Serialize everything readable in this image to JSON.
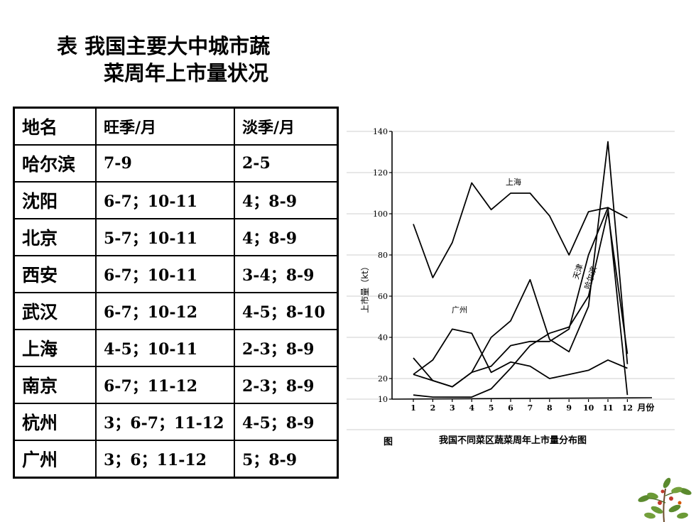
{
  "title": {
    "line1": "表  我国主要大中城市蔬",
    "line2": "菜周年上市量状况"
  },
  "table": {
    "headers": [
      "地名",
      "旺季/月",
      "淡季/月"
    ],
    "rows": [
      [
        "哈尔滨",
        "7-9",
        "2-5"
      ],
      [
        "沈阳",
        "6-7；10-11",
        "4；8-9"
      ],
      [
        "北京",
        "5-7；10-11",
        "4；8-9"
      ],
      [
        "西安",
        "6-7；10-11",
        "3-4；8-9"
      ],
      [
        "武汉",
        "6-7；10-12",
        "4-5；8-10"
      ],
      [
        "上海",
        "4-5；10-11",
        "2-3；8-9"
      ],
      [
        "南京",
        "6-7；11-12",
        "2-3；8-9"
      ],
      [
        "杭州",
        "3；6-7；11-12",
        "4-5；8-9"
      ],
      [
        "广州",
        "3；6；11-12",
        "5；8-9"
      ]
    ]
  },
  "chart_data": {
    "type": "line",
    "title": "我国不同菜区蔬菜周年上市量分布图",
    "caption_prefix": "图",
    "xlabel": "月份",
    "ylabel": "上市量（kt）",
    "x": [
      1,
      2,
      3,
      4,
      5,
      6,
      7,
      8,
      9,
      10,
      11,
      12
    ],
    "x_tick_labels": [
      "1",
      "2",
      "3",
      "4",
      "5",
      "6",
      "7",
      "8",
      "9",
      "10",
      "11",
      "12"
    ],
    "y_ticks": [
      10,
      20,
      40,
      60,
      80,
      100,
      120,
      140
    ],
    "ylim": [
      10,
      140
    ],
    "series": [
      {
        "name": "上海",
        "values": [
          95,
          69,
          86,
          115,
          102,
          110,
          110,
          99,
          80,
          101,
          103,
          98
        ]
      },
      {
        "name": "广州",
        "values": [
          22,
          29,
          44,
          42,
          23,
          28,
          26,
          20,
          22,
          24,
          29,
          25
        ]
      },
      {
        "name": "天津",
        "values": [
          30,
          19,
          16,
          23,
          40,
          48,
          68,
          39,
          33,
          55,
          135,
          27
        ]
      },
      {
        "name": "哈尔滨",
        "values": [
          12,
          11,
          11,
          11,
          15,
          25,
          36,
          42,
          45,
          60,
          101,
          32
        ]
      },
      {
        "name": "",
        "values": [
          22,
          19,
          16,
          23,
          26,
          36,
          38,
          38,
          44,
          80,
          103,
          12
        ]
      }
    ],
    "line_labels": [
      "上海",
      "广州",
      "天津",
      "哈尔滨"
    ]
  }
}
